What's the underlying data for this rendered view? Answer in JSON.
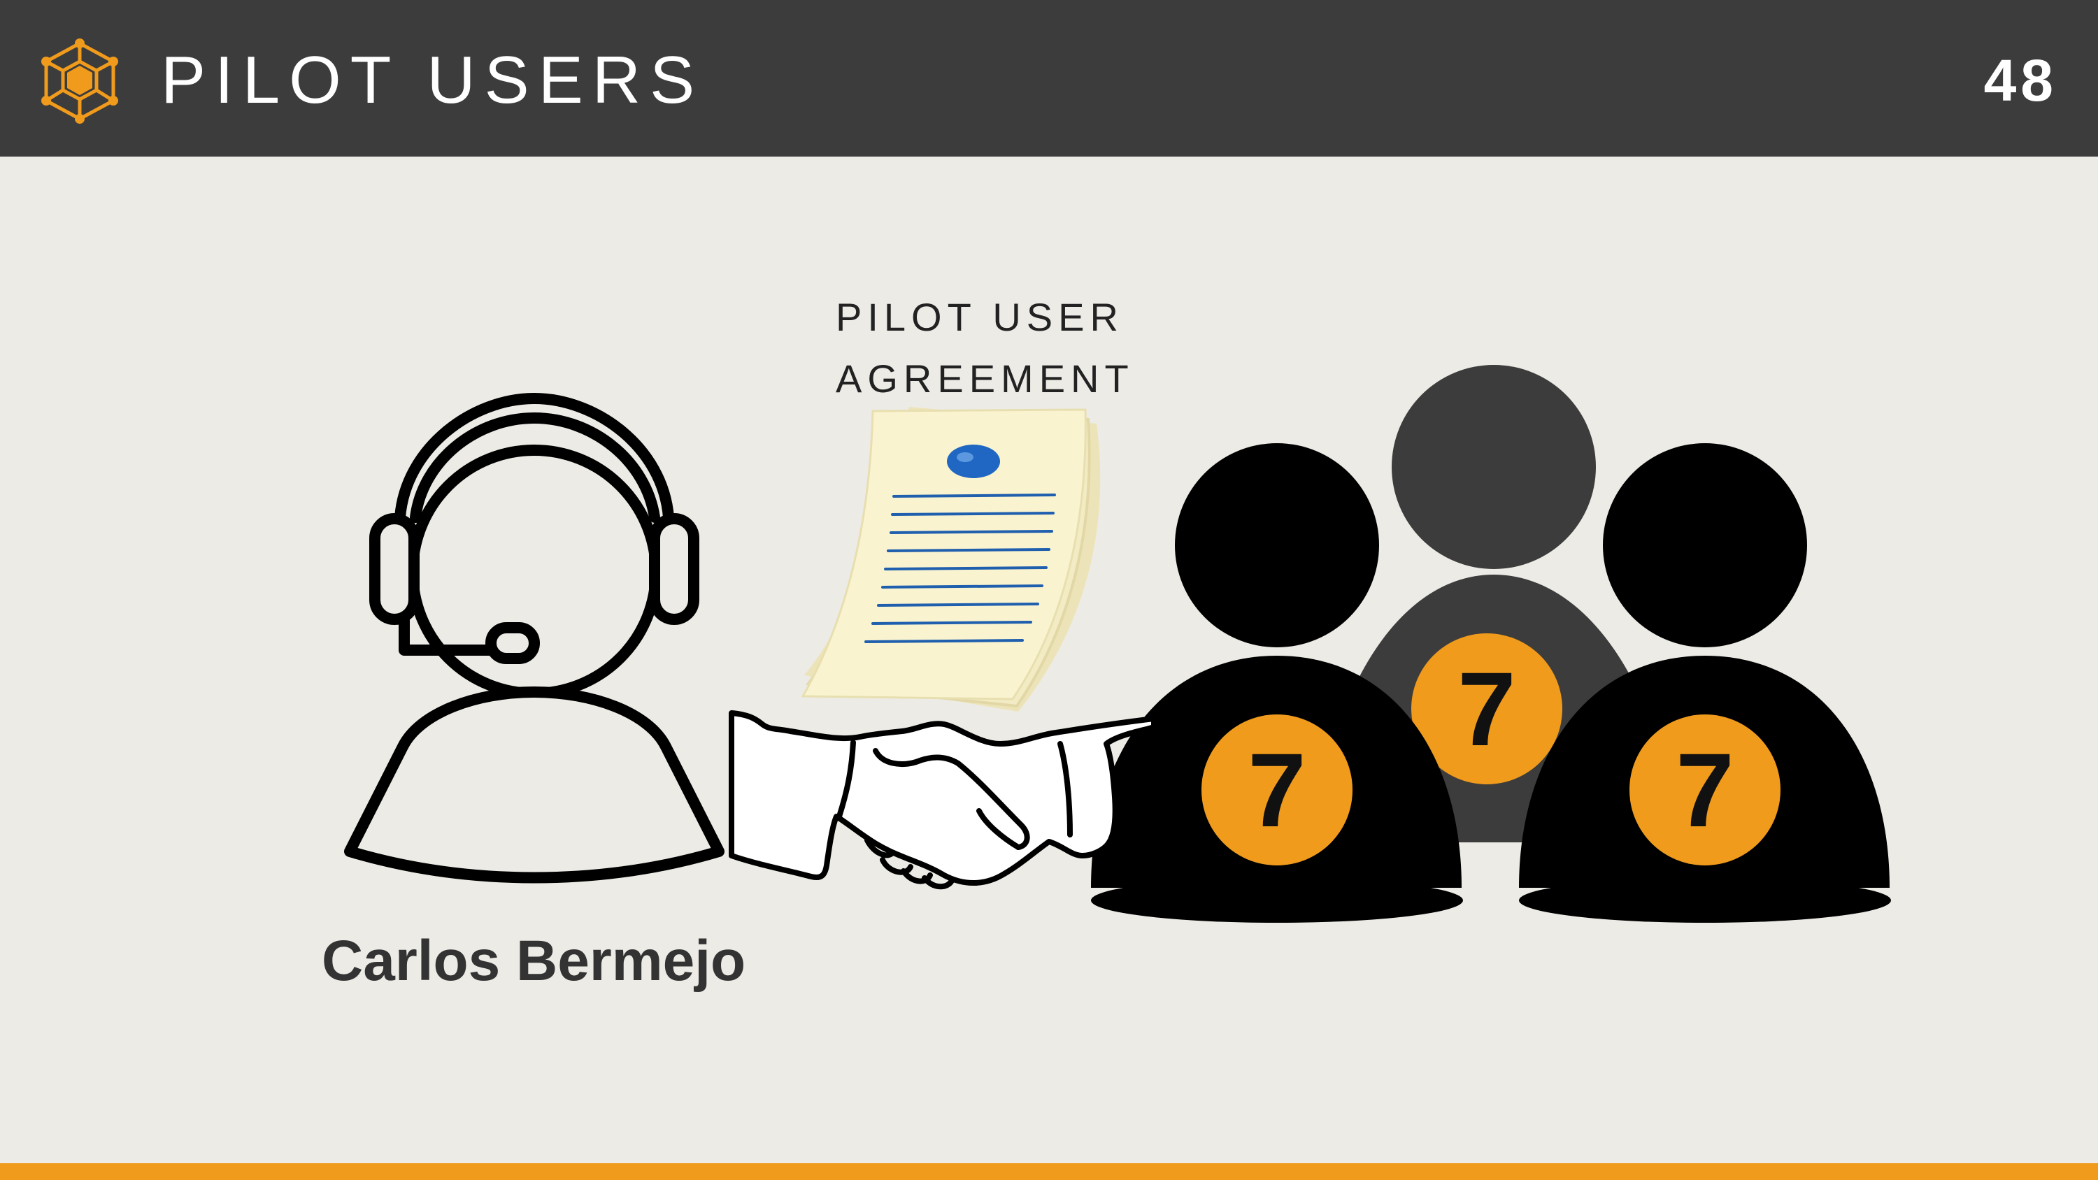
{
  "header": {
    "title": "PILOT USERS",
    "page_number": "48",
    "logo_icon": "cube-network-icon"
  },
  "illustration": {
    "document_title_line1": "PILOT USER",
    "document_title_line2": "AGREEMENT",
    "document_icon": "signed-document-icon",
    "handshake_icon": "handshake-icon",
    "support_agent_icon": "headset-agent-icon",
    "user_group_icon": "user-group-icon",
    "person_name": "Carlos Bermejo",
    "badge_label": "7"
  },
  "colors": {
    "header_bg": "#3c3c3c",
    "page_bg": "#ecebe6",
    "accent": "#f09b1c",
    "paper": "#faf3cf",
    "seal": "#1f67c2"
  }
}
